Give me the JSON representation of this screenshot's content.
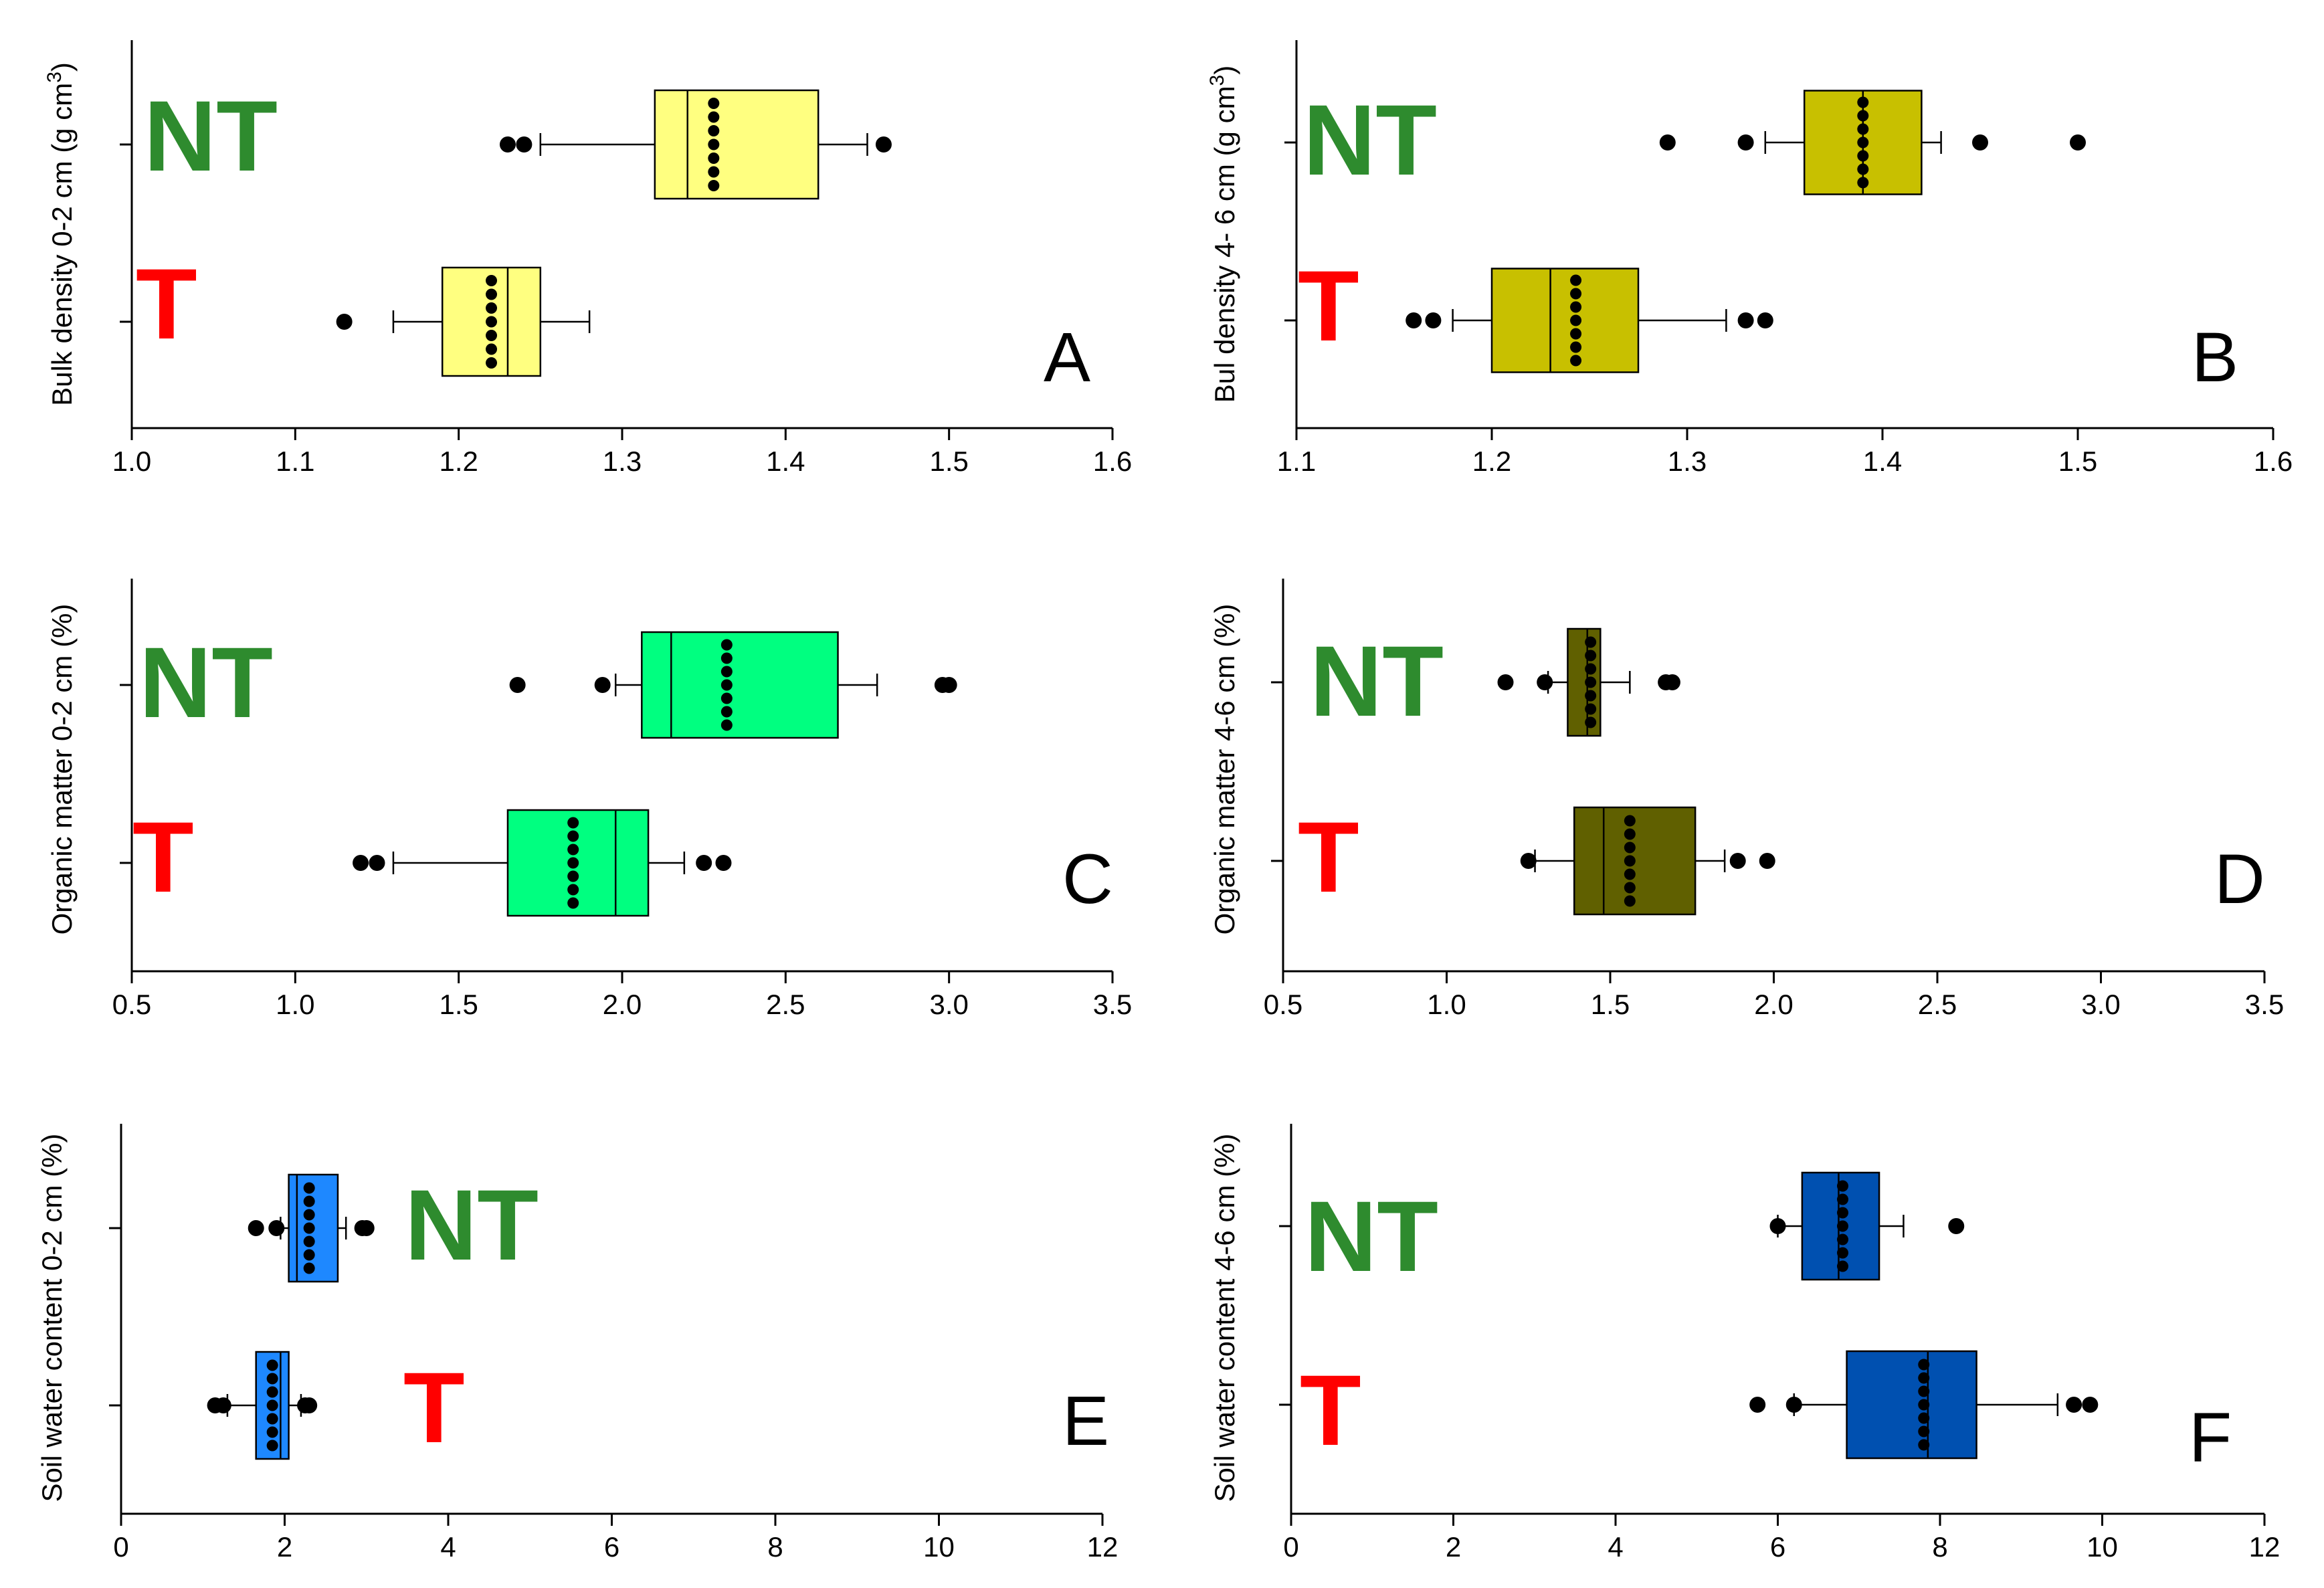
{
  "chart_data": [
    {
      "type": "boxplot",
      "panel_label": "A",
      "ylabel": "Bulk density 0-2 cm (g cm",
      "ylabel_sup": "3",
      "ylabel_close": ")",
      "xlim": [
        1.0,
        1.6
      ],
      "ticks": [
        "1.0",
        "1.1",
        "1.2",
        "1.3",
        "1.4",
        "1.5",
        "1.6"
      ],
      "box_color": "#ffff80",
      "groups": [
        {
          "name": "NT",
          "color": "#2e8b2e",
          "q1": 1.32,
          "median": 1.34,
          "q3": 1.42,
          "whisker_low": 1.25,
          "whisker_high": 1.45,
          "outliers": [
            1.23,
            1.24,
            1.46
          ],
          "points": [
            1.356,
            1.356,
            1.356,
            1.356,
            1.356,
            1.356,
            1.356
          ]
        },
        {
          "name": "T",
          "color": "#ff0000",
          "q1": 1.19,
          "median": 1.23,
          "q3": 1.25,
          "whisker_low": 1.16,
          "whisker_high": 1.28,
          "outliers": [
            1.13
          ],
          "points": [
            1.22,
            1.22,
            1.22,
            1.22,
            1.22,
            1.22,
            1.22
          ]
        }
      ]
    },
    {
      "type": "boxplot",
      "panel_label": "B",
      "ylabel": "Bul density 4- 6 cm (g cm",
      "ylabel_sup": "3",
      "ylabel_close": ")",
      "xlim": [
        1.1,
        1.6
      ],
      "ticks": [
        "1.1",
        "1.2",
        "1.3",
        "1.4",
        "1.5",
        "1.6"
      ],
      "box_color": "#c8c000",
      "groups": [
        {
          "name": "NT",
          "color": "#2e8b2e",
          "q1": 1.36,
          "median": 1.39,
          "q3": 1.42,
          "whisker_low": 1.34,
          "whisker_high": 1.43,
          "outliers": [
            1.29,
            1.33,
            1.45,
            1.5
          ],
          "points": [
            1.39,
            1.39,
            1.39,
            1.39,
            1.39,
            1.39,
            1.39
          ]
        },
        {
          "name": "T",
          "color": "#ff0000",
          "q1": 1.2,
          "median": 1.23,
          "q3": 1.275,
          "whisker_low": 1.18,
          "whisker_high": 1.32,
          "outliers": [
            1.16,
            1.17,
            1.33,
            1.34
          ],
          "points": [
            1.243,
            1.243,
            1.243,
            1.243,
            1.243,
            1.243,
            1.243
          ]
        }
      ]
    },
    {
      "type": "boxplot",
      "panel_label": "C",
      "ylabel": "Organic matter 0-2 cm (%)",
      "ylabel_sup": "",
      "ylabel_close": "",
      "xlim": [
        0.5,
        3.5
      ],
      "ticks": [
        "0.5",
        "1.0",
        "1.5",
        "2.0",
        "2.5",
        "3.0",
        "3.5"
      ],
      "box_color": "#00ff80",
      "groups": [
        {
          "name": "NT",
          "color": "#2e8b2e",
          "q1": 2.06,
          "median": 2.15,
          "q3": 2.66,
          "whisker_low": 1.98,
          "whisker_high": 2.78,
          "outliers": [
            1.68,
            1.94,
            2.98,
            3.0
          ],
          "points": [
            2.32,
            2.32,
            2.32,
            2.32,
            2.32,
            2.32,
            2.32
          ]
        },
        {
          "name": "T",
          "color": "#ff0000",
          "q1": 1.65,
          "median": 1.98,
          "q3": 2.08,
          "whisker_low": 1.3,
          "whisker_high": 2.19,
          "outliers": [
            1.2,
            1.25,
            2.25,
            2.31
          ],
          "points": [
            1.85,
            1.85,
            1.85,
            1.85,
            1.85,
            1.85,
            1.85
          ]
        }
      ]
    },
    {
      "type": "boxplot",
      "panel_label": "D",
      "ylabel": "Organic matter 4-6 cm (%)",
      "ylabel_sup": "",
      "ylabel_close": "",
      "xlim": [
        0.5,
        3.5
      ],
      "ticks": [
        "0.5",
        "1.0",
        "1.5",
        "2.0",
        "2.5",
        "3.0",
        "3.5"
      ],
      "box_color": "#606000",
      "groups": [
        {
          "name": "NT",
          "color": "#2e8b2e",
          "q1": 1.37,
          "median": 1.43,
          "q3": 1.47,
          "whisker_low": 1.31,
          "whisker_high": 1.56,
          "outliers": [
            1.18,
            1.3,
            1.67,
            1.69
          ],
          "points": [
            1.44,
            1.44,
            1.44,
            1.44,
            1.44,
            1.44,
            1.44
          ]
        },
        {
          "name": "T",
          "color": "#ff0000",
          "q1": 1.39,
          "median": 1.48,
          "q3": 1.76,
          "whisker_low": 1.27,
          "whisker_high": 1.85,
          "outliers": [
            1.25,
            1.89,
            1.98
          ],
          "points": [
            1.56,
            1.56,
            1.56,
            1.56,
            1.56,
            1.56,
            1.56
          ]
        }
      ]
    },
    {
      "type": "boxplot",
      "panel_label": "E",
      "ylabel": "Soil water content 0-2 cm (%)",
      "ylabel_sup": "",
      "ylabel_close": "",
      "xlim": [
        0,
        12
      ],
      "ticks": [
        "0",
        "2",
        "4",
        "6",
        "8",
        "10",
        "12"
      ],
      "box_color": "#1e88ff",
      "groups": [
        {
          "name": "NT",
          "color": "#2e8b2e",
          "q1": 2.05,
          "median": 2.15,
          "q3": 2.65,
          "whisker_low": 1.95,
          "whisker_high": 2.75,
          "outliers": [
            1.65,
            1.9,
            2.95,
            3.0
          ],
          "points": [
            2.3,
            2.3,
            2.3,
            2.3,
            2.3,
            2.3,
            2.3
          ]
        },
        {
          "name": "T",
          "color": "#ff0000",
          "q1": 1.65,
          "median": 1.95,
          "q3": 2.05,
          "whisker_low": 1.3,
          "whisker_high": 2.2,
          "outliers": [
            1.15,
            1.25,
            2.25,
            2.3
          ],
          "points": [
            1.85,
            1.85,
            1.85,
            1.85,
            1.85,
            1.85,
            1.85
          ]
        }
      ]
    },
    {
      "type": "boxplot",
      "panel_label": "F",
      "ylabel": "Soil water content 4-6 cm (%)",
      "ylabel_sup": "",
      "ylabel_close": "",
      "xlim": [
        0,
        12
      ],
      "ticks": [
        "0",
        "2",
        "4",
        "6",
        "8",
        "10",
        "12"
      ],
      "box_color": "#0050b0",
      "groups": [
        {
          "name": "NT",
          "color": "#2e8b2e",
          "q1": 6.3,
          "median": 6.75,
          "q3": 7.25,
          "whisker_low": 6.0,
          "whisker_high": 7.55,
          "outliers": [
            6.0,
            8.2
          ],
          "points": [
            6.8,
            6.8,
            6.8,
            6.8,
            6.8,
            6.8,
            6.8
          ]
        },
        {
          "name": "T",
          "color": "#ff0000",
          "q1": 6.85,
          "median": 7.85,
          "q3": 8.45,
          "whisker_low": 6.2,
          "whisker_high": 9.45,
          "outliers": [
            5.75,
            6.2,
            9.65,
            9.85
          ],
          "points": [
            7.8,
            7.8,
            7.8,
            7.8,
            7.8,
            7.8,
            7.8
          ]
        }
      ]
    }
  ]
}
